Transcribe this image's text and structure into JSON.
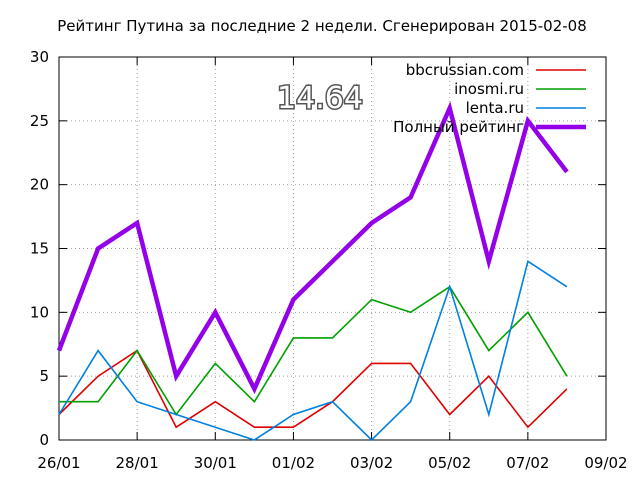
{
  "chart_data": {
    "type": "line",
    "title": "Рейтинг Путина за последние 2 недели. Сгенерирован 2015-02-08",
    "big_value": "14.64",
    "x": [
      "2015-01-26",
      "2015-01-27",
      "2015-01-28",
      "2015-01-29",
      "2015-01-30",
      "2015-01-31",
      "2015-02-01",
      "2015-02-02",
      "2015-02-03",
      "2015-02-04",
      "2015-02-05",
      "2015-02-06",
      "2015-02-07",
      "2015-02-08"
    ],
    "x_range": [
      "2015-01-26",
      "2015-02-09"
    ],
    "x_tick_labels": [
      "26/01",
      "28/01",
      "30/01",
      "01/02",
      "03/02",
      "05/02",
      "07/02",
      "09/02"
    ],
    "ylim": [
      0,
      30
    ],
    "y_ticks": [
      "0",
      "5",
      "10",
      "15",
      "20",
      "25",
      "30"
    ],
    "grid": true,
    "legend_position": "top-right",
    "series": [
      {
        "name": "bbcrussian.com",
        "color": "#e00000",
        "width": 1.6,
        "values": [
          2,
          5,
          7,
          1,
          3,
          1,
          1,
          3,
          6,
          6,
          2,
          5,
          1,
          4
        ]
      },
      {
        "name": "inosmi.ru",
        "color": "#00a000",
        "width": 1.6,
        "values": [
          3,
          3,
          7,
          2,
          6,
          3,
          8,
          8,
          11,
          10,
          12,
          7,
          10,
          5
        ]
      },
      {
        "name": "lenta.ru",
        "color": "#0080e0",
        "width": 1.6,
        "values": [
          2,
          7,
          3,
          2,
          1,
          0,
          2,
          3,
          0,
          3,
          12,
          2,
          14,
          12
        ]
      },
      {
        "name": "Полный рейтинг",
        "color": "#9400e8",
        "width": 4.5,
        "values": [
          7,
          15,
          17,
          5,
          10,
          4,
          11,
          14,
          17,
          19,
          26,
          14,
          25,
          21
        ]
      }
    ]
  }
}
